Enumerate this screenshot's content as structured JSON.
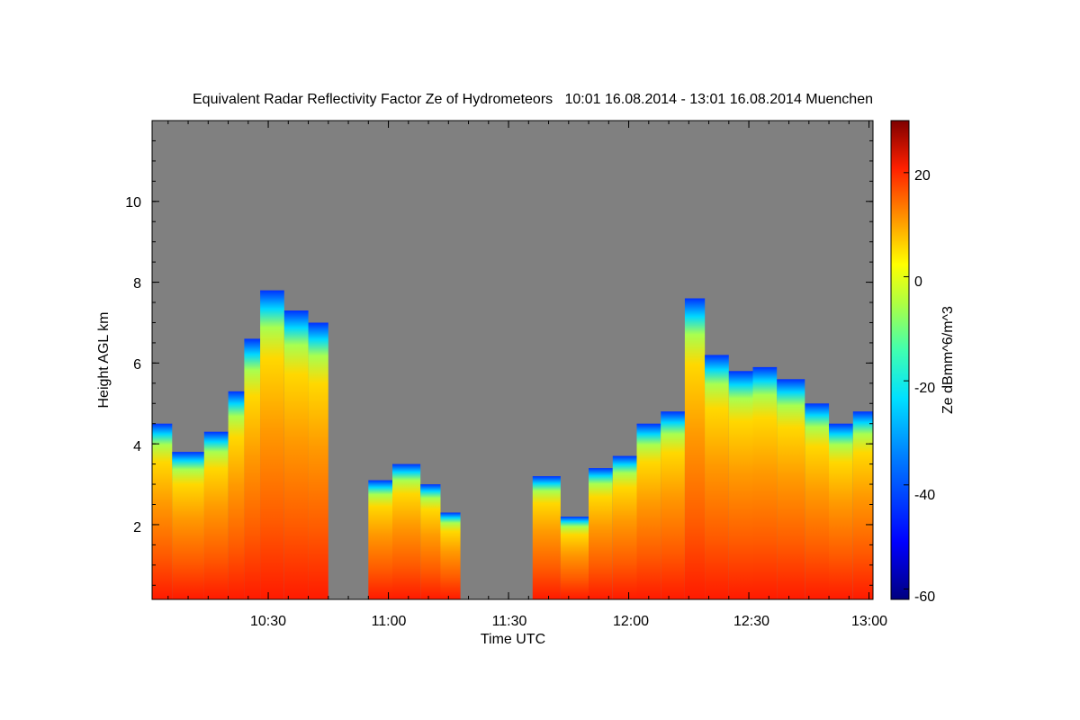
{
  "chart_data": {
    "type": "heatmap",
    "title": "Equivalent Radar Reflectivity Factor Ze of Hydrometeors   10:01 16.08.2014 - 13:01 16.08.2014 Muenchen",
    "xlabel": "Time UTC",
    "ylabel": "Height AGL km",
    "x_range": [
      "10:01",
      "13:01"
    ],
    "ylim": [
      0.15,
      12
    ],
    "x_ticks": [
      "10:30",
      "11:00",
      "11:30",
      "12:00",
      "12:30",
      "13:00"
    ],
    "y_ticks": [
      "2",
      "4",
      "6",
      "8",
      "10"
    ],
    "background_color": "#808080",
    "colorbar": {
      "label": "Ze dBmm^6/m^3",
      "range": [
        -62,
        30
      ],
      "ticks": [
        "20",
        "0",
        "-20",
        "-40",
        "-60"
      ]
    },
    "echo_columns": [
      {
        "start": "10:01",
        "end": "10:06",
        "top_km": 4.5
      },
      {
        "start": "10:06",
        "end": "10:14",
        "top_km": 3.8
      },
      {
        "start": "10:14",
        "end": "10:20",
        "top_km": 4.3
      },
      {
        "start": "10:20",
        "end": "10:24",
        "top_km": 5.3
      },
      {
        "start": "10:24",
        "end": "10:28",
        "top_km": 6.6
      },
      {
        "start": "10:28",
        "end": "10:34",
        "top_km": 7.8
      },
      {
        "start": "10:34",
        "end": "10:40",
        "top_km": 7.3
      },
      {
        "start": "10:40",
        "end": "10:45",
        "top_km": 7.0
      },
      {
        "start": "10:55",
        "end": "11:01",
        "top_km": 3.1
      },
      {
        "start": "11:01",
        "end": "11:08",
        "top_km": 3.5
      },
      {
        "start": "11:08",
        "end": "11:13",
        "top_km": 3.0
      },
      {
        "start": "11:13",
        "end": "11:18",
        "top_km": 2.3
      },
      {
        "start": "11:36",
        "end": "11:43",
        "top_km": 3.2
      },
      {
        "start": "11:43",
        "end": "11:50",
        "top_km": 2.2
      },
      {
        "start": "11:50",
        "end": "11:56",
        "top_km": 3.4
      },
      {
        "start": "11:56",
        "end": "12:02",
        "top_km": 3.7
      },
      {
        "start": "12:02",
        "end": "12:08",
        "top_km": 4.5
      },
      {
        "start": "12:08",
        "end": "12:14",
        "top_km": 4.8
      },
      {
        "start": "12:14",
        "end": "12:19",
        "top_km": 7.6
      },
      {
        "start": "12:19",
        "end": "12:25",
        "top_km": 6.2
      },
      {
        "start": "12:25",
        "end": "12:31",
        "top_km": 5.8
      },
      {
        "start": "12:31",
        "end": "12:37",
        "top_km": 5.9
      },
      {
        "start": "12:37",
        "end": "12:44",
        "top_km": 5.6
      },
      {
        "start": "12:44",
        "end": "12:50",
        "top_km": 5.0
      },
      {
        "start": "12:50",
        "end": "12:56",
        "top_km": 4.5
      },
      {
        "start": "12:56",
        "end": "13:01",
        "top_km": 4.8
      }
    ]
  }
}
